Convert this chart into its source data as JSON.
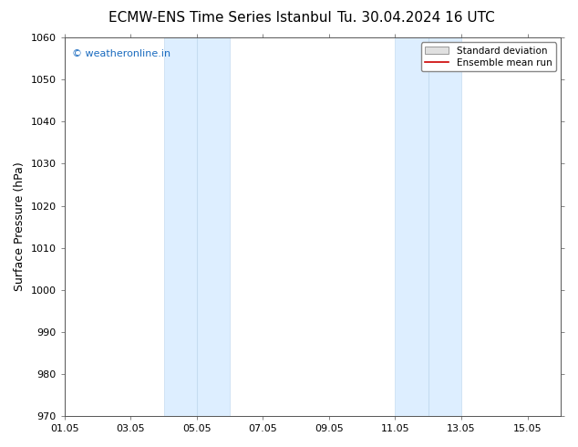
{
  "title_left": "ECMW-ENS Time Series Istanbul",
  "title_right": "Tu. 30.04.2024 16 UTC",
  "ylabel": "Surface Pressure (hPa)",
  "ylim": [
    970,
    1060
  ],
  "yticks": [
    970,
    980,
    990,
    1000,
    1010,
    1020,
    1030,
    1040,
    1050,
    1060
  ],
  "xlim": [
    1,
    16
  ],
  "xtick_labels": [
    "01.05",
    "03.05",
    "05.05",
    "07.05",
    "09.05",
    "11.05",
    "13.05",
    "15.05"
  ],
  "xtick_positions": [
    1,
    3,
    5,
    7,
    9,
    11,
    13,
    15
  ],
  "shaded_regions": [
    {
      "xmin": 4.0,
      "xmax": 5.0
    },
    {
      "xmin": 5.0,
      "xmax": 6.0
    },
    {
      "xmin": 11.0,
      "xmax": 12.0
    },
    {
      "xmin": 12.0,
      "xmax": 13.0
    }
  ],
  "shaded_color": "#ddeeff",
  "shaded_edge_color": "#c5dcf0",
  "watermark_text": "© weatheronline.in",
  "watermark_color": "#1a6bbf",
  "legend_std_label": "Standard deviation",
  "legend_ens_label": "Ensemble mean run",
  "legend_ens_color": "#cc0000",
  "background_color": "#ffffff",
  "title_fontsize": 11,
  "tick_fontsize": 8,
  "ylabel_fontsize": 9
}
